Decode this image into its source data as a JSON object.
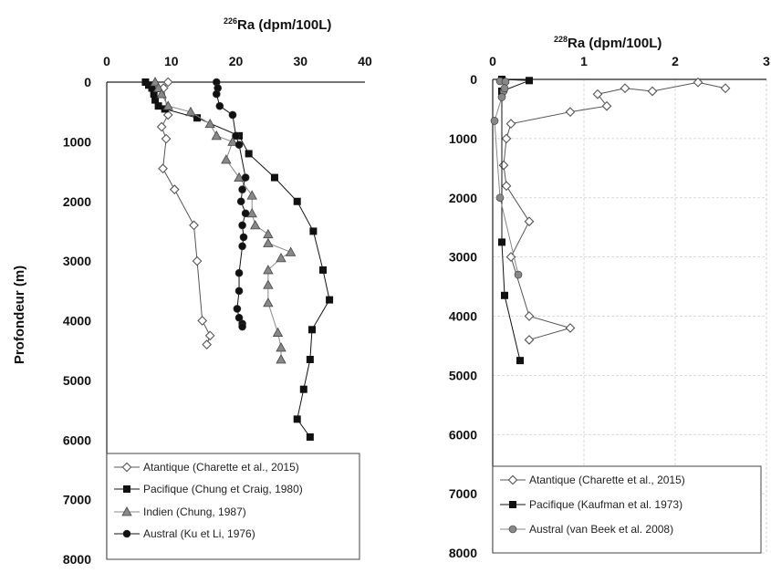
{
  "chart_data": [
    {
      "type": "scatter",
      "title_sup": "226",
      "title_main": "Ra (dpm/100L)",
      "ylabel": "Profondeur (m)",
      "x_ticks": [
        "0",
        "10",
        "20",
        "30",
        "40"
      ],
      "y_ticks": [
        "0",
        "1000",
        "2000",
        "3000",
        "4000",
        "5000",
        "6000",
        "7000",
        "8000"
      ],
      "xlim": [
        0,
        40
      ],
      "ylim": [
        8000,
        0
      ],
      "grid": false,
      "legend_position": "bottom",
      "series": [
        {
          "name": "Atantique (Charette et al., 2015)",
          "marker": "diamond-open",
          "color": "#555555",
          "x": [
            9.5,
            8.8,
            9.5,
            8.5,
            9.2,
            8.7,
            10.5,
            13.5,
            14.0,
            14.8,
            16.0,
            15.5
          ],
          "y": [
            0,
            100,
            550,
            750,
            950,
            1450,
            1800,
            2400,
            3000,
            4000,
            4250,
            4400
          ]
        },
        {
          "name": "Pacifique (Chung et Craig, 1980)",
          "marker": "square",
          "color": "#111111",
          "x": [
            6,
            6.5,
            7,
            7.3,
            7.5,
            8,
            9,
            14,
            20.5,
            22,
            26,
            29.5,
            32,
            33.5,
            34.5,
            31.8,
            31.5,
            30.5,
            29.5,
            31.5
          ],
          "y": [
            0,
            50,
            100,
            200,
            300,
            400,
            450,
            600,
            900,
            1200,
            1600,
            2000,
            2500,
            3150,
            3650,
            4150,
            4650,
            5150,
            5650,
            5950
          ]
        },
        {
          "name": "Indien (Chung, 1987)",
          "marker": "triangle",
          "color": "#888888",
          "x": [
            7.5,
            8,
            8.5,
            9.5,
            13,
            16,
            17,
            19.5,
            18.5,
            20.5,
            22.5,
            22.5,
            23,
            25,
            25,
            28.5,
            27,
            25,
            25,
            25,
            26.5,
            27,
            27
          ],
          "y": [
            0,
            100,
            200,
            400,
            500,
            700,
            900,
            1000,
            1300,
            1600,
            1900,
            2200,
            2400,
            2550,
            2700,
            2850,
            2950,
            3150,
            3400,
            3700,
            4200,
            4450,
            4650
          ]
        },
        {
          "name": "Austral (Ku et Li, 1976)",
          "marker": "circle",
          "color": "#111111",
          "x": [
            17,
            17.2,
            17,
            17.5,
            19.5,
            20,
            20.5,
            21.5,
            21,
            20.8,
            21.5,
            21,
            21.2,
            21,
            20.5,
            20.5,
            20.2,
            20.5,
            21,
            21
          ],
          "y": [
            0,
            100,
            200,
            400,
            550,
            900,
            1050,
            1600,
            1800,
            2000,
            2200,
            2400,
            2600,
            2750,
            3200,
            3500,
            3800,
            3950,
            4050,
            4100
          ]
        }
      ]
    },
    {
      "type": "scatter",
      "title_sup": "228",
      "title_main": "Ra (dpm/100L)",
      "ylabel": "",
      "x_ticks": [
        "0",
        "1",
        "2",
        "3"
      ],
      "y_ticks": [
        "0",
        "1000",
        "2000",
        "3000",
        "4000",
        "5000",
        "6000",
        "7000",
        "8000"
      ],
      "xlim": [
        0,
        3
      ],
      "ylim": [
        8000,
        0
      ],
      "grid": true,
      "legend_position": "bottom",
      "series": [
        {
          "name": "Atantique (Charette et al., 2015)",
          "marker": "diamond-open",
          "color": "#555555",
          "x": [
            2.55,
            2.25,
            1.75,
            1.45,
            1.15,
            1.25,
            0.85,
            0.2,
            0.15,
            0.12,
            0.15,
            0.4,
            0.2,
            0.4,
            0.85,
            0.4
          ],
          "y": [
            150,
            50,
            200,
            150,
            250,
            450,
            550,
            750,
            1000,
            1450,
            1800,
            2400,
            3000,
            4000,
            4200,
            4400
          ]
        },
        {
          "name": "Pacifique (Kaufman et al. 1973)",
          "marker": "square",
          "color": "#111111",
          "x": [
            0.1,
            0.4,
            0.1,
            0.1,
            0.13,
            0.3
          ],
          "y": [
            0,
            20,
            200,
            2750,
            3650,
            4750
          ]
        },
        {
          "name": "Austral (van Beek et al. 2008)",
          "marker": "circle",
          "color": "#888888",
          "x": [
            0.08,
            0.14,
            0.12,
            0.13,
            0.1,
            0.02,
            0.08,
            0.28
          ],
          "y": [
            30,
            40,
            200,
            150,
            300,
            700,
            2000,
            3300
          ]
        }
      ]
    }
  ]
}
